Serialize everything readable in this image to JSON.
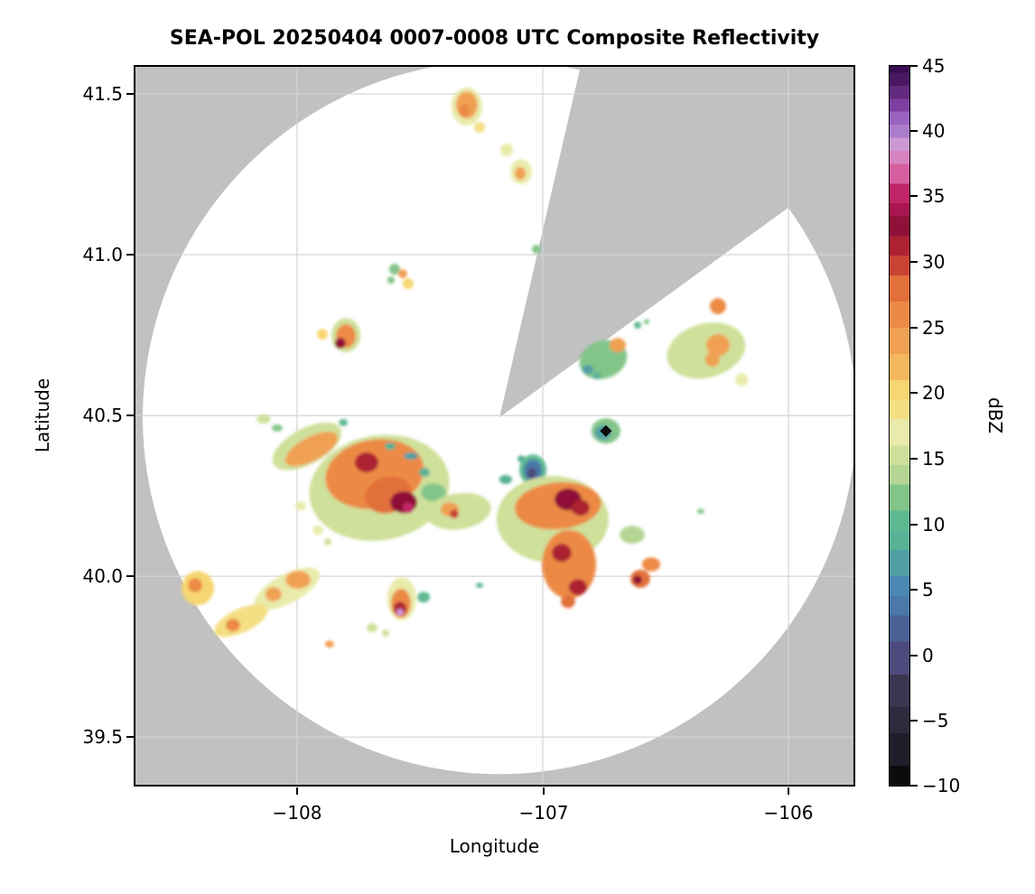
{
  "title": "SEA-POL 20250404 0007-0008 UTC Composite Reflectivity",
  "axes": {
    "xlabel": "Longitude",
    "ylabel": "Latitude",
    "x_tick_labels": [
      "−108",
      "−107",
      "−106"
    ],
    "x_tick_values": [
      -108,
      -107,
      -106
    ],
    "y_tick_labels": [
      "41.5",
      "41.0",
      "40.5",
      "40.0",
      "39.5"
    ],
    "y_tick_values": [
      41.5,
      41.0,
      40.5,
      40.0,
      39.5
    ],
    "xlim": [
      -108.665,
      -105.728
    ],
    "ylim": [
      39.346,
      41.59
    ],
    "grid": true
  },
  "colorbar": {
    "label": "dBZ",
    "tick_labels": [
      "45",
      "40",
      "35",
      "30",
      "25",
      "20",
      "15",
      "10",
      "5",
      "0",
      "−5",
      "−10"
    ],
    "tick_values": [
      45,
      40,
      35,
      30,
      25,
      20,
      15,
      10,
      5,
      0,
      -5,
      -10
    ],
    "vmin": -10,
    "vmax": 45
  },
  "colors": {
    "no_data_gray": "#c1c1c1",
    "scan_area_white": "#ffffff",
    "grid_line": "#d4d4d4",
    "frame": "#000000",
    "site_marker": "#0a0a0a"
  },
  "chart_data": {
    "type": "heatmap",
    "title": "SEA-POL 20250404 0007-0008 UTC Composite Reflectivity",
    "xlabel": "Longitude",
    "ylabel": "Latitude",
    "value_label": "dBZ",
    "value_range": [
      -10,
      45
    ],
    "radar": {
      "name": "SEA-POL",
      "lon": -107.176,
      "lat": 40.494,
      "scan_range_deg_lon": 1.452,
      "blocked_sector_azimuth_deg": [
        13,
        54
      ]
    },
    "site_marker": {
      "lon": -106.743,
      "lat": 40.452,
      "shape": "diamond"
    },
    "colormap_stops": [
      [
        -10,
        "#0b0b0d"
      ],
      [
        -7,
        "#201c2a"
      ],
      [
        -5,
        "#2e2a3e"
      ],
      [
        -3,
        "#3a3650"
      ],
      [
        0,
        "#4c4a7c"
      ],
      [
        2,
        "#4b6094"
      ],
      [
        4,
        "#4a79a9"
      ],
      [
        5,
        "#4a87b2"
      ],
      [
        7,
        "#4f9fa5"
      ],
      [
        9,
        "#59b295"
      ],
      [
        10,
        "#5eb991"
      ],
      [
        12,
        "#83c489"
      ],
      [
        14,
        "#b5d594"
      ],
      [
        15,
        "#cfe09a"
      ],
      [
        17,
        "#e9ebaa"
      ],
      [
        19,
        "#f4df85"
      ],
      [
        20,
        "#f6d671"
      ],
      [
        22,
        "#f4b75e"
      ],
      [
        24,
        "#f0a052"
      ],
      [
        26,
        "#ec8a45"
      ],
      [
        28,
        "#e2703a"
      ],
      [
        30,
        "#c84332"
      ],
      [
        31,
        "#ad2133"
      ],
      [
        33,
        "#8f1038"
      ],
      [
        34,
        "#a8154f"
      ],
      [
        35,
        "#c02568"
      ],
      [
        37,
        "#d55f9e"
      ],
      [
        38,
        "#d783c0"
      ],
      [
        39,
        "#cb97d4"
      ],
      [
        40,
        "#ab7ccc"
      ],
      [
        41,
        "#9a63c0"
      ],
      [
        42,
        "#7e3fa0"
      ],
      [
        43,
        "#63297f"
      ],
      [
        44,
        "#4a1862"
      ],
      [
        45,
        "#370d50"
      ]
    ],
    "echo_fields": [
      "lon",
      "lat",
      "rx_deg",
      "ry_deg",
      "rotation_deg",
      "dbz"
    ],
    "echoes": [
      [
        -107.309,
        41.461,
        0.063,
        0.059,
        0,
        17
      ],
      [
        -107.309,
        41.466,
        0.044,
        0.042,
        0,
        24
      ],
      [
        -107.32,
        41.449,
        0.022,
        0.02,
        0,
        27
      ],
      [
        -107.257,
        41.396,
        0.022,
        0.017,
        0,
        19
      ],
      [
        -107.147,
        41.326,
        0.026,
        0.02,
        0,
        17
      ],
      [
        -107.088,
        41.258,
        0.044,
        0.039,
        0,
        17
      ],
      [
        -107.092,
        41.253,
        0.022,
        0.02,
        0,
        25
      ],
      [
        -107.026,
        41.017,
        0.018,
        0.014,
        0,
        12
      ],
      [
        -107.603,
        40.955,
        0.022,
        0.017,
        0,
        13
      ],
      [
        -107.57,
        40.941,
        0.018,
        0.014,
        0,
        24
      ],
      [
        -107.548,
        40.91,
        0.022,
        0.017,
        0,
        20
      ],
      [
        -107.618,
        40.921,
        0.015,
        0.011,
        0,
        13
      ],
      [
        -107.801,
        40.75,
        0.059,
        0.053,
        0,
        16
      ],
      [
        -107.801,
        40.747,
        0.04,
        0.037,
        0,
        26
      ],
      [
        -107.824,
        40.725,
        0.022,
        0.017,
        0,
        33
      ],
      [
        -107.897,
        40.753,
        0.022,
        0.017,
        0,
        21
      ],
      [
        -106.335,
        40.702,
        0.162,
        0.084,
        -15,
        15
      ],
      [
        -106.287,
        40.719,
        0.048,
        0.034,
        0,
        25
      ],
      [
        -106.309,
        40.674,
        0.029,
        0.022,
        0,
        24
      ],
      [
        -106.287,
        40.84,
        0.033,
        0.025,
        0,
        27
      ],
      [
        -106.191,
        40.612,
        0.026,
        0.02,
        0,
        18
      ],
      [
        -106.754,
        40.674,
        0.099,
        0.059,
        -20,
        13
      ],
      [
        -106.695,
        40.719,
        0.033,
        0.022,
        0,
        25
      ],
      [
        -106.816,
        40.643,
        0.022,
        0.014,
        0,
        8
      ],
      [
        -106.779,
        40.624,
        0.018,
        0.011,
        0,
        9
      ],
      [
        -106.614,
        40.781,
        0.015,
        0.011,
        0,
        11
      ],
      [
        -106.577,
        40.792,
        0.011,
        0.008,
        0,
        13
      ],
      [
        -106.743,
        40.452,
        0.059,
        0.039,
        0,
        12
      ],
      [
        -106.754,
        40.447,
        0.033,
        0.022,
        0,
        8
      ],
      [
        -107.04,
        40.331,
        0.055,
        0.048,
        0,
        11
      ],
      [
        -107.04,
        40.329,
        0.037,
        0.034,
        0,
        4
      ],
      [
        -107.044,
        40.32,
        0.018,
        0.017,
        0,
        0
      ],
      [
        -107.088,
        40.365,
        0.015,
        0.011,
        0,
        9
      ],
      [
        -107.665,
        40.275,
        0.287,
        0.163,
        -10,
        15
      ],
      [
        -107.96,
        40.404,
        0.154,
        0.056,
        -28,
        16
      ],
      [
        -107.941,
        40.396,
        0.118,
        0.037,
        -28,
        24
      ],
      [
        -107.684,
        40.318,
        0.202,
        0.107,
        -10,
        26
      ],
      [
        -107.717,
        40.354,
        0.048,
        0.031,
        0,
        31
      ],
      [
        -107.629,
        40.253,
        0.096,
        0.056,
        -15,
        29
      ],
      [
        -107.566,
        40.23,
        0.055,
        0.034,
        0,
        33
      ],
      [
        -107.548,
        40.213,
        0.022,
        0.017,
        0,
        36
      ],
      [
        -107.482,
        40.323,
        0.022,
        0.014,
        0,
        9
      ],
      [
        -107.812,
        40.478,
        0.018,
        0.011,
        0,
        10
      ],
      [
        -107.445,
        40.261,
        0.051,
        0.028,
        0,
        13
      ],
      [
        -107.342,
        40.202,
        0.132,
        0.056,
        -8,
        16
      ],
      [
        -107.379,
        40.208,
        0.037,
        0.022,
        0,
        25
      ],
      [
        -107.36,
        40.194,
        0.018,
        0.014,
        0,
        30
      ],
      [
        -106.96,
        40.177,
        0.228,
        0.135,
        0,
        15
      ],
      [
        -106.938,
        40.219,
        0.176,
        0.073,
        -5,
        27
      ],
      [
        -106.897,
        40.239,
        0.055,
        0.034,
        0,
        33
      ],
      [
        -106.846,
        40.213,
        0.037,
        0.025,
        0,
        31
      ],
      [
        -106.893,
        40.037,
        0.11,
        0.107,
        0,
        27
      ],
      [
        -106.923,
        40.073,
        0.04,
        0.028,
        0,
        32
      ],
      [
        -106.857,
        39.966,
        0.037,
        0.025,
        0,
        32
      ],
      [
        -106.897,
        39.921,
        0.029,
        0.02,
        0,
        29
      ],
      [
        -106.636,
        40.129,
        0.051,
        0.028,
        0,
        14
      ],
      [
        -106.559,
        40.037,
        0.037,
        0.022,
        0,
        26
      ],
      [
        -106.603,
        39.992,
        0.04,
        0.028,
        0,
        28
      ],
      [
        -106.614,
        39.989,
        0.018,
        0.014,
        0,
        33
      ],
      [
        -108.04,
        39.961,
        0.147,
        0.045,
        -28,
        17
      ],
      [
        -107.996,
        39.989,
        0.051,
        0.028,
        0,
        25
      ],
      [
        -108.096,
        39.944,
        0.033,
        0.022,
        0,
        24
      ],
      [
        -108.228,
        39.862,
        0.118,
        0.037,
        -25,
        19
      ],
      [
        -108.261,
        39.848,
        0.029,
        0.02,
        0,
        26
      ],
      [
        -108.404,
        39.963,
        0.066,
        0.053,
        0,
        20
      ],
      [
        -108.415,
        39.972,
        0.029,
        0.022,
        0,
        26
      ],
      [
        -107.574,
        39.93,
        0.059,
        0.067,
        0,
        18
      ],
      [
        -107.577,
        39.916,
        0.04,
        0.045,
        0,
        27
      ],
      [
        -107.581,
        39.899,
        0.026,
        0.022,
        0,
        31
      ],
      [
        -107.581,
        39.888,
        0.015,
        0.011,
        0,
        39
      ],
      [
        -107.485,
        39.935,
        0.026,
        0.017,
        0,
        11
      ],
      [
        -107.985,
        40.219,
        0.022,
        0.014,
        0,
        17
      ],
      [
        -107.915,
        40.143,
        0.022,
        0.014,
        0,
        17
      ],
      [
        -107.875,
        40.107,
        0.015,
        0.011,
        0,
        15
      ],
      [
        -107.868,
        39.789,
        0.018,
        0.011,
        0,
        25
      ],
      [
        -107.695,
        39.84,
        0.022,
        0.014,
        0,
        16
      ],
      [
        -107.64,
        39.823,
        0.015,
        0.011,
        0,
        16
      ],
      [
        -107.257,
        39.972,
        0.015,
        0.008,
        0,
        11
      ],
      [
        -107.151,
        40.301,
        0.026,
        0.014,
        0,
        9
      ],
      [
        -106.357,
        40.202,
        0.015,
        0.008,
        0,
        12
      ],
      [
        -108.136,
        40.489,
        0.029,
        0.014,
        0,
        16
      ],
      [
        -108.081,
        40.461,
        0.022,
        0.011,
        0,
        12
      ],
      [
        -107.537,
        40.374,
        0.029,
        0.011,
        0,
        8
      ],
      [
        -107.621,
        40.404,
        0.022,
        0.011,
        0,
        9
      ]
    ]
  }
}
